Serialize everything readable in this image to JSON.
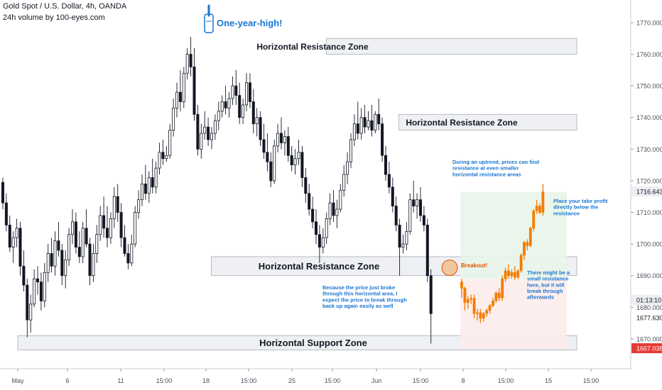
{
  "header": {
    "symbol_line": "Gold Spot / U.S. Dollar, 4h, OANDA",
    "volume_line": "24h volume by 100-eyes.com"
  },
  "colors": {
    "accent": "#1976d2",
    "candle": "#131722",
    "projection": "#f57c00",
    "target_fill": "#e8f5e9",
    "stop_fill": "#fdecec",
    "zone_fill": "#eef0f4",
    "price_tag": "#131722",
    "stop_tag": "#e53935"
  },
  "chart_data": {
    "type": "candlestick",
    "ylim": [
      1665,
      1775
    ],
    "y_ticks": [
      1670.0,
      1680.0,
      1690.0,
      1700.0,
      1710.0,
      1720.0,
      1730.0,
      1740.0,
      1750.0,
      1760.0,
      1770.0
    ],
    "x_tick_labels": [
      "May",
      "6",
      "11",
      "15:00",
      "18",
      "15:00",
      "25",
      "15:00",
      "Jun",
      "15:00",
      "8",
      "15:00",
      "15",
      "15:00"
    ],
    "price_tags": [
      {
        "label": "1716.643",
        "value": 1716.643,
        "kind": "last"
      },
      {
        "label": "01:13:10",
        "value": 1682.0,
        "kind": "timer"
      },
      {
        "label": "1677.630",
        "value": 1677.63,
        "kind": "plain"
      },
      {
        "label": "1667.038",
        "value": 1667.038,
        "kind": "stop"
      }
    ],
    "zones": [
      {
        "label": "Horizontal Resistance Zone",
        "low": 1760.0,
        "high": 1765.0,
        "x_from": "May 18 00:00",
        "x_to": "Jun 17 00:00"
      },
      {
        "label": "Horizontal Resistance Zone",
        "low": 1736.0,
        "high": 1741.0,
        "x_from": "May 22 00:00",
        "x_to": "Jun 17 00:00"
      },
      {
        "label": "",
        "low": 1716.0,
        "high": 1719.0,
        "x_from": "Jun 7 00:00",
        "x_to": "Jun 17 00:00"
      },
      {
        "label": "Horizontal Resistance Zone",
        "low": 1690.0,
        "high": 1696.0,
        "x_from": "May 11 16:00",
        "x_to": "Jun 17 00:00"
      },
      {
        "label": "Horizontal Support Zone",
        "low": 1666.5,
        "high": 1671.0,
        "x_from": "May 1 00:00",
        "x_to": "Jun 17 00:00"
      }
    ],
    "annotations": [
      {
        "text": "One-year-high!",
        "style": "title-blue"
      },
      {
        "text": "Breakout!",
        "style": "orange"
      },
      {
        "text": "During an uptrend, prices can find resistance at even smaller horizontal resistance areas",
        "style": "blue"
      },
      {
        "text": "Place your take profit directly below the resistance",
        "style": "blue"
      },
      {
        "text": "There might be a small resistance here, but it will break through afterwards",
        "style": "blue"
      },
      {
        "text": "Because the price just broke through this horizontal area, I expect the price to break through back up again easily as well",
        "style": "blue"
      }
    ],
    "position": {
      "entry": 1689.0,
      "target": 1716.5,
      "stop": 1667.0
    },
    "projection": [
      {
        "o": 1688.0,
        "h": 1689.0,
        "c": 1686.0,
        "l": 1683.0
      },
      {
        "o": 1686.0,
        "h": 1686.5,
        "c": 1681.5,
        "l": 1679.0
      },
      {
        "o": 1681.5,
        "h": 1683.5,
        "c": 1682.5,
        "l": 1679.5
      },
      {
        "o": 1682.5,
        "h": 1684.0,
        "c": 1682.8,
        "l": 1681.0
      },
      {
        "o": 1682.8,
        "h": 1684.0,
        "c": 1678.0,
        "l": 1676.5
      },
      {
        "o": 1678.0,
        "h": 1679.5,
        "c": 1678.3,
        "l": 1675.8
      },
      {
        "o": 1678.3,
        "h": 1679.5,
        "c": 1676.5,
        "l": 1675.0
      },
      {
        "o": 1676.5,
        "h": 1678.5,
        "c": 1678.0,
        "l": 1675.5
      },
      {
        "o": 1678.0,
        "h": 1679.5,
        "c": 1679.0,
        "l": 1677.0
      },
      {
        "o": 1679.0,
        "h": 1681.0,
        "c": 1680.5,
        "l": 1678.0
      },
      {
        "o": 1680.5,
        "h": 1683.0,
        "c": 1682.0,
        "l": 1680.0
      },
      {
        "o": 1682.0,
        "h": 1685.0,
        "c": 1684.5,
        "l": 1681.5
      },
      {
        "o": 1684.5,
        "h": 1686.0,
        "c": 1683.0,
        "l": 1682.0
      },
      {
        "o": 1683.0,
        "h": 1690.0,
        "c": 1689.0,
        "l": 1682.0
      },
      {
        "o": 1689.0,
        "h": 1692.5,
        "c": 1691.5,
        "l": 1688.0
      },
      {
        "o": 1691.5,
        "h": 1693.5,
        "c": 1690.0,
        "l": 1689.0
      },
      {
        "o": 1690.0,
        "h": 1692.0,
        "c": 1691.0,
        "l": 1689.0
      },
      {
        "o": 1691.0,
        "h": 1693.0,
        "c": 1689.5,
        "l": 1688.5
      },
      {
        "o": 1689.5,
        "h": 1692.0,
        "c": 1691.5,
        "l": 1689.0
      },
      {
        "o": 1691.5,
        "h": 1697.0,
        "c": 1696.5,
        "l": 1691.0
      },
      {
        "o": 1696.5,
        "h": 1701.0,
        "c": 1700.5,
        "l": 1695.0
      },
      {
        "o": 1700.5,
        "h": 1701.5,
        "c": 1699.5,
        "l": 1698.0
      },
      {
        "o": 1699.5,
        "h": 1705.5,
        "c": 1705.0,
        "l": 1699.0
      },
      {
        "o": 1705.0,
        "h": 1711.0,
        "c": 1710.5,
        "l": 1704.0
      },
      {
        "o": 1710.5,
        "h": 1714.0,
        "c": 1712.0,
        "l": 1709.5
      },
      {
        "o": 1712.0,
        "h": 1712.8,
        "c": 1710.0,
        "l": 1709.5
      },
      {
        "o": 1710.0,
        "h": 1719.0,
        "c": 1716.5,
        "l": 1709.0
      }
    ],
    "candles": [
      {
        "o": 1719.5,
        "h": 1721.0,
        "c": 1713.0,
        "l": 1711.0
      },
      {
        "o": 1713.0,
        "h": 1716.0,
        "c": 1706.0,
        "l": 1704.0
      },
      {
        "o": 1706.0,
        "h": 1709.0,
        "c": 1699.0,
        "l": 1697.5
      },
      {
        "o": 1699.0,
        "h": 1704.0,
        "c": 1702.0,
        "l": 1694.0
      },
      {
        "o": 1702.0,
        "h": 1708.0,
        "c": 1705.0,
        "l": 1699.0
      },
      {
        "o": 1705.0,
        "h": 1707.0,
        "c": 1693.0,
        "l": 1690.0
      },
      {
        "o": 1693.0,
        "h": 1698.0,
        "c": 1687.0,
        "l": 1685.0
      },
      {
        "o": 1687.0,
        "h": 1689.0,
        "c": 1676.0,
        "l": 1670.5
      },
      {
        "o": 1676.0,
        "h": 1684.0,
        "c": 1681.0,
        "l": 1672.0
      },
      {
        "o": 1681.0,
        "h": 1692.0,
        "c": 1689.0,
        "l": 1680.0
      },
      {
        "o": 1689.0,
        "h": 1693.0,
        "c": 1688.0,
        "l": 1684.0
      },
      {
        "o": 1688.0,
        "h": 1691.0,
        "c": 1682.0,
        "l": 1679.0
      },
      {
        "o": 1682.0,
        "h": 1694.0,
        "c": 1691.0,
        "l": 1680.0
      },
      {
        "o": 1691.0,
        "h": 1700.0,
        "c": 1697.0,
        "l": 1688.0
      },
      {
        "o": 1697.0,
        "h": 1702.0,
        "c": 1693.0,
        "l": 1691.0
      },
      {
        "o": 1693.0,
        "h": 1704.0,
        "c": 1701.0,
        "l": 1690.0
      },
      {
        "o": 1701.0,
        "h": 1707.0,
        "c": 1698.0,
        "l": 1696.0
      },
      {
        "o": 1698.0,
        "h": 1700.0,
        "c": 1690.0,
        "l": 1687.0
      },
      {
        "o": 1690.0,
        "h": 1698.0,
        "c": 1695.0,
        "l": 1686.0
      },
      {
        "o": 1695.0,
        "h": 1705.0,
        "c": 1703.0,
        "l": 1693.0
      },
      {
        "o": 1703.0,
        "h": 1711.0,
        "c": 1707.0,
        "l": 1700.0
      },
      {
        "o": 1707.0,
        "h": 1710.0,
        "c": 1699.0,
        "l": 1697.0
      },
      {
        "o": 1699.0,
        "h": 1704.0,
        "c": 1696.0,
        "l": 1694.0
      },
      {
        "o": 1696.0,
        "h": 1707.0,
        "c": 1705.0,
        "l": 1694.0
      },
      {
        "o": 1705.0,
        "h": 1711.0,
        "c": 1700.0,
        "l": 1699.0
      },
      {
        "o": 1700.0,
        "h": 1702.0,
        "c": 1690.0,
        "l": 1687.0
      },
      {
        "o": 1690.0,
        "h": 1700.0,
        "c": 1697.0,
        "l": 1688.0
      },
      {
        "o": 1697.0,
        "h": 1706.0,
        "c": 1703.0,
        "l": 1694.0
      },
      {
        "o": 1703.0,
        "h": 1712.0,
        "c": 1709.0,
        "l": 1701.0
      },
      {
        "o": 1709.0,
        "h": 1715.0,
        "c": 1705.0,
        "l": 1702.0
      },
      {
        "o": 1705.0,
        "h": 1712.0,
        "c": 1702.0,
        "l": 1699.0
      },
      {
        "o": 1702.0,
        "h": 1710.0,
        "c": 1708.0,
        "l": 1700.0
      },
      {
        "o": 1708.0,
        "h": 1718.0,
        "c": 1715.0,
        "l": 1705.0
      },
      {
        "o": 1715.0,
        "h": 1719.0,
        "c": 1710.0,
        "l": 1707.0
      },
      {
        "o": 1710.0,
        "h": 1713.0,
        "c": 1702.0,
        "l": 1699.0
      },
      {
        "o": 1702.0,
        "h": 1706.0,
        "c": 1697.0,
        "l": 1696.0
      },
      {
        "o": 1697.0,
        "h": 1700.0,
        "c": 1694.0,
        "l": 1692.0
      },
      {
        "o": 1694.0,
        "h": 1703.0,
        "c": 1700.0,
        "l": 1693.0
      },
      {
        "o": 1700.0,
        "h": 1712.0,
        "c": 1710.0,
        "l": 1699.0
      },
      {
        "o": 1710.0,
        "h": 1717.0,
        "c": 1714.0,
        "l": 1708.0
      },
      {
        "o": 1714.0,
        "h": 1722.0,
        "c": 1719.0,
        "l": 1712.0
      },
      {
        "o": 1719.0,
        "h": 1725.0,
        "c": 1716.0,
        "l": 1714.0
      },
      {
        "o": 1716.0,
        "h": 1723.0,
        "c": 1721.0,
        "l": 1713.0
      },
      {
        "o": 1721.0,
        "h": 1727.0,
        "c": 1718.0,
        "l": 1716.0
      },
      {
        "o": 1718.0,
        "h": 1726.0,
        "c": 1724.0,
        "l": 1716.0
      },
      {
        "o": 1724.0,
        "h": 1732.0,
        "c": 1729.0,
        "l": 1722.0
      },
      {
        "o": 1729.0,
        "h": 1733.0,
        "c": 1727.0,
        "l": 1725.0
      },
      {
        "o": 1727.0,
        "h": 1731.0,
        "c": 1728.0,
        "l": 1726.0
      },
      {
        "o": 1728.0,
        "h": 1738.0,
        "c": 1736.0,
        "l": 1727.0
      },
      {
        "o": 1736.0,
        "h": 1746.0,
        "c": 1743.0,
        "l": 1734.0
      },
      {
        "o": 1743.0,
        "h": 1751.0,
        "c": 1748.0,
        "l": 1740.0
      },
      {
        "o": 1748.0,
        "h": 1755.0,
        "c": 1745.0,
        "l": 1742.0
      },
      {
        "o": 1745.0,
        "h": 1756.0,
        "c": 1754.0,
        "l": 1743.0
      },
      {
        "o": 1754.0,
        "h": 1762.0,
        "c": 1760.0,
        "l": 1752.0
      },
      {
        "o": 1760.0,
        "h": 1765.5,
        "c": 1756.0,
        "l": 1753.0
      },
      {
        "o": 1756.0,
        "h": 1762.0,
        "c": 1741.0,
        "l": 1739.0
      },
      {
        "o": 1741.0,
        "h": 1744.0,
        "c": 1730.0,
        "l": 1728.0
      },
      {
        "o": 1730.0,
        "h": 1738.0,
        "c": 1735.0,
        "l": 1727.0
      },
      {
        "o": 1735.0,
        "h": 1742.0,
        "c": 1737.0,
        "l": 1733.0
      },
      {
        "o": 1737.0,
        "h": 1740.0,
        "c": 1733.0,
        "l": 1731.0
      },
      {
        "o": 1733.0,
        "h": 1737.0,
        "c": 1735.0,
        "l": 1730.0
      },
      {
        "o": 1735.0,
        "h": 1741.0,
        "c": 1739.0,
        "l": 1733.0
      },
      {
        "o": 1739.0,
        "h": 1745.0,
        "c": 1742.0,
        "l": 1736.0
      },
      {
        "o": 1742.0,
        "h": 1747.0,
        "c": 1745.0,
        "l": 1740.0
      },
      {
        "o": 1745.0,
        "h": 1750.0,
        "c": 1743.0,
        "l": 1741.0
      },
      {
        "o": 1743.0,
        "h": 1748.0,
        "c": 1746.0,
        "l": 1740.0
      },
      {
        "o": 1746.0,
        "h": 1753.0,
        "c": 1750.0,
        "l": 1744.0
      },
      {
        "o": 1750.0,
        "h": 1755.0,
        "c": 1747.0,
        "l": 1744.0
      },
      {
        "o": 1747.0,
        "h": 1751.0,
        "c": 1740.0,
        "l": 1738.0
      },
      {
        "o": 1740.0,
        "h": 1746.0,
        "c": 1744.0,
        "l": 1738.0
      },
      {
        "o": 1744.0,
        "h": 1754.0,
        "c": 1751.0,
        "l": 1742.0
      },
      {
        "o": 1751.0,
        "h": 1754.0,
        "c": 1745.0,
        "l": 1743.0
      },
      {
        "o": 1745.0,
        "h": 1749.0,
        "c": 1738.0,
        "l": 1735.0
      },
      {
        "o": 1738.0,
        "h": 1743.0,
        "c": 1740.0,
        "l": 1734.0
      },
      {
        "o": 1740.0,
        "h": 1742.0,
        "c": 1733.0,
        "l": 1731.0
      },
      {
        "o": 1733.0,
        "h": 1738.0,
        "c": 1729.0,
        "l": 1727.0
      },
      {
        "o": 1729.0,
        "h": 1735.0,
        "c": 1726.0,
        "l": 1723.0
      },
      {
        "o": 1726.0,
        "h": 1729.0,
        "c": 1720.0,
        "l": 1718.0
      },
      {
        "o": 1720.0,
        "h": 1733.0,
        "c": 1731.0,
        "l": 1719.0
      },
      {
        "o": 1731.0,
        "h": 1738.0,
        "c": 1735.0,
        "l": 1729.0
      },
      {
        "o": 1735.0,
        "h": 1740.0,
        "c": 1732.0,
        "l": 1730.0
      },
      {
        "o": 1732.0,
        "h": 1736.0,
        "c": 1734.0,
        "l": 1728.0
      },
      {
        "o": 1734.0,
        "h": 1737.0,
        "c": 1728.0,
        "l": 1726.0
      },
      {
        "o": 1728.0,
        "h": 1731.0,
        "c": 1725.0,
        "l": 1723.0
      },
      {
        "o": 1725.0,
        "h": 1730.0,
        "c": 1727.0,
        "l": 1722.0
      },
      {
        "o": 1727.0,
        "h": 1733.0,
        "c": 1729.0,
        "l": 1725.0
      },
      {
        "o": 1729.0,
        "h": 1731.0,
        "c": 1721.0,
        "l": 1718.0
      },
      {
        "o": 1721.0,
        "h": 1724.0,
        "c": 1716.0,
        "l": 1713.0
      },
      {
        "o": 1716.0,
        "h": 1719.0,
        "c": 1711.0,
        "l": 1709.0
      },
      {
        "o": 1711.0,
        "h": 1715.0,
        "c": 1707.0,
        "l": 1705.0
      },
      {
        "o": 1707.0,
        "h": 1711.0,
        "c": 1703.0,
        "l": 1700.0
      },
      {
        "o": 1703.0,
        "h": 1706.0,
        "c": 1699.0,
        "l": 1694.0
      },
      {
        "o": 1699.0,
        "h": 1705.0,
        "c": 1702.0,
        "l": 1697.0
      },
      {
        "o": 1702.0,
        "h": 1710.0,
        "c": 1708.0,
        "l": 1700.0
      },
      {
        "o": 1708.0,
        "h": 1716.0,
        "c": 1713.0,
        "l": 1706.0
      },
      {
        "o": 1713.0,
        "h": 1717.0,
        "c": 1709.0,
        "l": 1707.0
      },
      {
        "o": 1709.0,
        "h": 1714.0,
        "c": 1711.0,
        "l": 1705.0
      },
      {
        "o": 1711.0,
        "h": 1719.0,
        "c": 1717.0,
        "l": 1710.0
      },
      {
        "o": 1717.0,
        "h": 1725.0,
        "c": 1722.0,
        "l": 1715.0
      },
      {
        "o": 1722.0,
        "h": 1729.0,
        "c": 1726.0,
        "l": 1719.0
      },
      {
        "o": 1726.0,
        "h": 1735.0,
        "c": 1733.0,
        "l": 1724.0
      },
      {
        "o": 1733.0,
        "h": 1741.0,
        "c": 1738.0,
        "l": 1731.0
      },
      {
        "o": 1738.0,
        "h": 1745.0,
        "c": 1735.0,
        "l": 1733.0
      },
      {
        "o": 1735.0,
        "h": 1743.0,
        "c": 1740.0,
        "l": 1733.0
      },
      {
        "o": 1740.0,
        "h": 1744.0,
        "c": 1737.0,
        "l": 1735.0
      },
      {
        "o": 1737.0,
        "h": 1742.0,
        "c": 1739.0,
        "l": 1736.0
      },
      {
        "o": 1739.0,
        "h": 1744.0,
        "c": 1736.0,
        "l": 1734.0
      },
      {
        "o": 1736.0,
        "h": 1742.0,
        "c": 1741.0,
        "l": 1735.0
      },
      {
        "o": 1741.0,
        "h": 1746.0,
        "c": 1738.0,
        "l": 1736.0
      },
      {
        "o": 1738.0,
        "h": 1740.0,
        "c": 1728.0,
        "l": 1726.0
      },
      {
        "o": 1728.0,
        "h": 1731.0,
        "c": 1722.0,
        "l": 1720.0
      },
      {
        "o": 1722.0,
        "h": 1726.0,
        "c": 1718.0,
        "l": 1716.0
      },
      {
        "o": 1718.0,
        "h": 1721.0,
        "c": 1712.0,
        "l": 1710.0
      },
      {
        "o": 1712.0,
        "h": 1715.0,
        "c": 1706.0,
        "l": 1704.0
      },
      {
        "o": 1706.0,
        "h": 1708.0,
        "c": 1699.0,
        "l": 1690.0
      },
      {
        "o": 1699.0,
        "h": 1703.0,
        "c": 1700.0,
        "l": 1697.0
      },
      {
        "o": 1700.0,
        "h": 1707.0,
        "c": 1704.0,
        "l": 1698.0
      },
      {
        "o": 1704.0,
        "h": 1716.0,
        "c": 1714.0,
        "l": 1703.0
      },
      {
        "o": 1714.0,
        "h": 1720.0,
        "c": 1712.0,
        "l": 1710.0
      },
      {
        "o": 1712.0,
        "h": 1716.0,
        "c": 1714.0,
        "l": 1708.0
      },
      {
        "o": 1714.0,
        "h": 1718.0,
        "c": 1709.0,
        "l": 1707.0
      },
      {
        "o": 1709.0,
        "h": 1712.0,
        "c": 1706.0,
        "l": 1704.0
      },
      {
        "o": 1706.0,
        "h": 1708.0,
        "c": 1690.0,
        "l": 1688.0
      },
      {
        "o": 1690.0,
        "h": 1692.0,
        "c": 1678.0,
        "l": 1668.5
      }
    ]
  }
}
